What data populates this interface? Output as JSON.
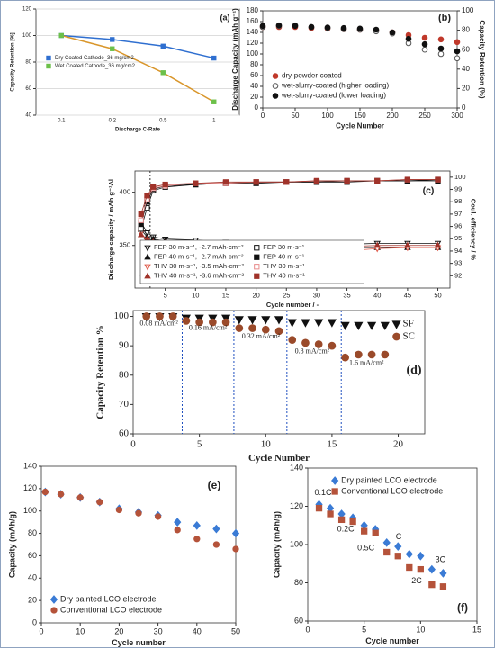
{
  "chart_data": [
    {
      "type": "line",
      "panel_label": "(a)",
      "x_label": "Discharge C-Rate",
      "y_label": "Capacity Retention [%]",
      "categories": [
        "0.1",
        "0.2",
        "0.5",
        "1"
      ],
      "ylim": [
        40,
        120
      ],
      "yticks": [
        40,
        60,
        80,
        100,
        120
      ],
      "grid": true,
      "legend": "center-left",
      "series": [
        {
          "name": "Dry Coated Cathode_36 mg/cm2",
          "color": "#2f6fd0",
          "marker": "square",
          "filled": true,
          "values": [
            100,
            97,
            92,
            83
          ]
        },
        {
          "name": "Wet Coated Cathode_36 mg/cm2",
          "color": "#d9962b",
          "marker_color": "#6cc04a",
          "marker": "square",
          "filled": true,
          "values": [
            100,
            90,
            72,
            50
          ]
        }
      ]
    },
    {
      "type": "scatter",
      "panel_label": "(b)",
      "x_label": "Cycle Number",
      "y_label": "Discharge Capacity (mAh g⁻¹)",
      "y2_label": "Capacity Retention (%)",
      "x": [
        0,
        25,
        50,
        75,
        100,
        125,
        150,
        175,
        200,
        225,
        250,
        275,
        300
      ],
      "xlim": [
        0,
        300
      ],
      "xticks": [
        0,
        50,
        100,
        150,
        200,
        250,
        300
      ],
      "ylim": [
        0,
        180
      ],
      "yticks": [
        0,
        20,
        40,
        60,
        80,
        100,
        120,
        140,
        160,
        180
      ],
      "y2lim": [
        0,
        100
      ],
      "y2ticks": [
        0,
        20,
        40,
        60,
        80,
        100
      ],
      "legend": "lower-left",
      "series": [
        {
          "name": "dry-powder-coated",
          "color": "#c0392b",
          "marker": "circle",
          "filled": true,
          "values": [
            150,
            150,
            150,
            148,
            147,
            146,
            145,
            143,
            140,
            135,
            130,
            127,
            122
          ]
        },
        {
          "name": "wet-slurry-coated (higher loading)",
          "color": "#555555",
          "marker": "circle",
          "filled": false,
          "values": [
            150,
            152,
            153,
            150,
            148,
            146,
            145,
            142,
            138,
            120,
            108,
            100,
            92
          ]
        },
        {
          "name": "wet-slurry-coated (lower loading)",
          "color": "#111111",
          "marker": "circle",
          "filled": true,
          "values": [
            152,
            153,
            152,
            150,
            149,
            148,
            147,
            145,
            140,
            128,
            118,
            110,
            105
          ]
        }
      ]
    },
    {
      "type": "line",
      "panel_label": "(c)",
      "x_label": "Cycle number / -",
      "y_label": "Discharge capacity / mAh g⁻¹Al",
      "y2_label": "Coul. efficiency / %",
      "x": [
        1,
        2,
        3,
        5,
        10,
        15,
        20,
        25,
        30,
        35,
        40,
        45,
        50
      ],
      "xlim": [
        0,
        52
      ],
      "xticks": [
        5,
        10,
        15,
        20,
        25,
        30,
        35,
        40,
        45,
        50
      ],
      "ylim": [
        310,
        420
      ],
      "yticks": [
        350,
        400
      ],
      "y2lim": [
        91,
        100.5
      ],
      "y2ticks": [
        92,
        93,
        94,
        95,
        96,
        97,
        98,
        99,
        100
      ],
      "legend": "lower-left",
      "dividers": [
        2.5
      ],
      "annotations": [
        {
          "text": "(1)",
          "x": 0.8,
          "y": 322
        },
        {
          "text": "(2)",
          "x": 3.8,
          "y": 322
        }
      ],
      "series": [
        {
          "name": "FEP 30 m·s⁻¹, -2.7 mAh·cm⁻²",
          "color": "#111111",
          "marker": "triangle-down",
          "filled": false,
          "values": [
            372,
            362,
            358,
            356,
            355,
            353,
            350,
            349,
            350,
            351,
            352,
            352,
            352
          ]
        },
        {
          "name": "FEP 40 m·s⁻¹, -2.7 mAh·cm⁻²",
          "color": "#111111",
          "marker": "triangle",
          "filled": true,
          "values": [
            365,
            358,
            356,
            354,
            350,
            345,
            337,
            343,
            347,
            348,
            348,
            348,
            348
          ]
        },
        {
          "name": "THV 30 m·s⁻¹, -3.5 mAh·cm⁻²",
          "color": "#e05a4a",
          "marker": "triangle-down",
          "filled": false,
          "values": [
            362,
            355,
            352,
            350,
            348,
            345,
            338,
            330,
            340,
            345,
            347,
            348,
            348
          ]
        },
        {
          "name": "THV 40 m·s⁻¹, -3.6 mAh·cm⁻²",
          "color": "#a0332a",
          "marker": "triangle",
          "filled": true,
          "values": [
            360,
            356,
            353,
            352,
            350,
            349,
            348,
            348,
            349,
            349,
            350,
            350,
            350
          ]
        },
        {
          "name": "FEP 30 m·s⁻¹",
          "axis": "y2",
          "color": "#111111",
          "marker": "square",
          "filled": false,
          "values": [
            95.8,
            97.5,
            98.9,
            99.2,
            99.4,
            99.5,
            99.6,
            99.6,
            99.6,
            99.7,
            99.7,
            99.7,
            99.8
          ]
        },
        {
          "name": "FEP 40 m·s⁻¹",
          "axis": "y2",
          "color": "#111111",
          "marker": "square",
          "filled": true,
          "values": [
            96.2,
            98.0,
            99.0,
            99.3,
            99.4,
            99.5,
            99.5,
            99.6,
            99.6,
            99.6,
            99.7,
            99.7,
            99.7
          ]
        },
        {
          "name": "THV 30 m·s⁻¹",
          "axis": "y2",
          "color": "#e88a8a",
          "marker": "square",
          "filled": false,
          "values": [
            96.5,
            98.2,
            99.1,
            99.3,
            99.5,
            99.5,
            99.6,
            99.6,
            99.7,
            99.7,
            99.7,
            99.8,
            99.8
          ]
        },
        {
          "name": "THV 40 m·s⁻¹",
          "axis": "y2",
          "color": "#a0332a",
          "marker": "square",
          "filled": true,
          "values": [
            97.0,
            98.5,
            99.2,
            99.4,
            99.5,
            99.6,
            99.6,
            99.6,
            99.7,
            99.7,
            99.7,
            99.8,
            99.8
          ]
        }
      ]
    },
    {
      "type": "scatter",
      "panel_label": "(d)",
      "x_label": "Cycle Number",
      "y_label": "Capacity Retention %",
      "x": [
        1,
        2,
        3,
        4,
        5,
        6,
        7,
        8,
        9,
        10,
        11,
        12,
        13,
        14,
        15,
        16,
        17,
        18,
        19
      ],
      "xlim": [
        0,
        22
      ],
      "xticks": [
        0,
        5,
        10,
        15,
        20
      ],
      "ylim": [
        60,
        102
      ],
      "yticks": [
        60,
        70,
        80,
        90,
        100
      ],
      "legend": "upper-right",
      "dividers": [
        3.7,
        7.6,
        11.6,
        15.7
      ],
      "annotations": [
        {
          "text": "0.08 mA/cm²",
          "x": 0.5,
          "y": 97.5
        },
        {
          "text": "0.16 mA/cm²",
          "x": 4.2,
          "y": 96
        },
        {
          "text": "0.32 mA/cm²",
          "x": 8.2,
          "y": 93
        },
        {
          "text": "0.8 mA/cm²",
          "x": 12.2,
          "y": 88
        },
        {
          "text": "1.6 mA/cm²",
          "x": 16.3,
          "y": 84
        }
      ],
      "series": [
        {
          "name": "SF",
          "color": "#111111",
          "marker": "triangle-down",
          "filled": true,
          "values": [
            100,
            100,
            100,
            99.5,
            99.5,
            99.5,
            99.5,
            99,
            99,
            99,
            99,
            98,
            98,
            98,
            98,
            97,
            97,
            97,
            97
          ]
        },
        {
          "name": "SC",
          "color": "#9a4a2a",
          "marker": "circle",
          "filled": true,
          "values": [
            100,
            100,
            100,
            98.5,
            98,
            98,
            98,
            96,
            96,
            95.5,
            95,
            92,
            91,
            90.5,
            90,
            86,
            87,
            87,
            87
          ]
        }
      ]
    },
    {
      "type": "scatter",
      "panel_label": "(e)",
      "x_label": "Cycle number",
      "y_label": "Capacity (mAh/g)",
      "x": [
        1,
        5,
        10,
        15,
        20,
        25,
        30,
        35,
        40,
        45,
        50
      ],
      "xlim": [
        0,
        50
      ],
      "xticks": [
        0,
        10,
        20,
        30,
        40,
        50
      ],
      "ylim": [
        0,
        140
      ],
      "yticks": [
        0,
        20,
        40,
        60,
        80,
        100,
        120,
        140
      ],
      "legend": "lower-left",
      "series": [
        {
          "name": "Dry painted LCO electrode",
          "color": "#3a7bd5",
          "marker": "diamond",
          "filled": true,
          "values": [
            117,
            115,
            112,
            108,
            102,
            99,
            96,
            90,
            87,
            84,
            80
          ]
        },
        {
          "name": "Conventional LCO electrode",
          "color": "#b5533a",
          "marker": "circle",
          "filled": true,
          "values": [
            117,
            115,
            112,
            108,
            101,
            98,
            95,
            83,
            75,
            70,
            66
          ]
        }
      ]
    },
    {
      "type": "scatter",
      "panel_label": "(f)",
      "x_label": "Cycle number",
      "y_label": "Capacity (mAh/g)",
      "x": [
        1,
        2,
        3,
        4,
        5,
        6,
        7,
        8,
        9,
        10,
        11,
        12
      ],
      "xlim": [
        0,
        15
      ],
      "xticks": [
        0,
        5,
        10,
        15
      ],
      "ylim": [
        60,
        140
      ],
      "yticks": [
        60,
        80,
        100,
        120,
        140
      ],
      "legend": "upper-center",
      "annotations": [
        {
          "text": "0.1C",
          "x": 0.6,
          "y": 127
        },
        {
          "text": "0.2C",
          "x": 2.6,
          "y": 108
        },
        {
          "text": "0.5C",
          "x": 4.4,
          "y": 98
        },
        {
          "text": "C",
          "x": 7.8,
          "y": 104
        },
        {
          "text": "2C",
          "x": 9.2,
          "y": 81
        },
        {
          "text": "3C",
          "x": 11.3,
          "y": 92
        }
      ],
      "series": [
        {
          "name": "Dry painted LCO electrode",
          "color": "#3a7bd5",
          "marker": "diamond",
          "filled": true,
          "values": [
            121,
            119,
            116,
            114,
            110,
            108,
            101,
            99,
            95,
            94,
            87,
            85
          ]
        },
        {
          "name": "Conventional LCO electrode",
          "color": "#b5533a",
          "marker": "square",
          "filled": true,
          "values": [
            119,
            116,
            113,
            112,
            107,
            106,
            96,
            94,
            88,
            87,
            79,
            78
          ]
        }
      ]
    }
  ]
}
